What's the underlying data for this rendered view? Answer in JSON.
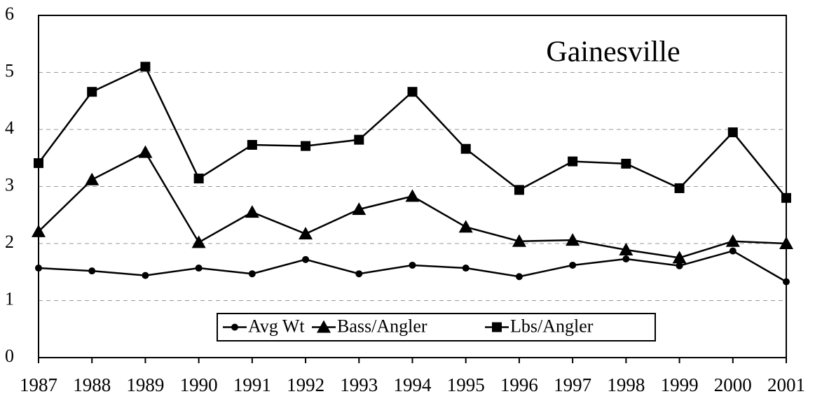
{
  "chart_data": {
    "type": "line",
    "title": "Gainesville",
    "categories": [
      "1987",
      "1988",
      "1989",
      "1990",
      "1991",
      "1992",
      "1993",
      "1994",
      "1995",
      "1996",
      "1997",
      "1998",
      "1999",
      "2000",
      "2001"
    ],
    "series": [
      {
        "name": "Avg Wt",
        "color": "#000000",
        "marker": "circle",
        "values": [
          1.57,
          1.52,
          1.44,
          1.57,
          1.47,
          1.72,
          1.47,
          1.62,
          1.57,
          1.42,
          1.62,
          1.73,
          1.61,
          1.87,
          1.33
        ]
      },
      {
        "name": "Bass/Angler",
        "color": "#000000",
        "marker": "triangle",
        "values": [
          2.21,
          3.12,
          3.6,
          2.02,
          2.55,
          2.17,
          2.6,
          2.83,
          2.29,
          2.04,
          2.06,
          1.89,
          1.75,
          2.04,
          2.0
        ]
      },
      {
        "name": "Lbs/Angler",
        "color": "#000000",
        "marker": "square",
        "values": [
          3.41,
          4.66,
          5.1,
          3.14,
          3.73,
          3.71,
          3.82,
          4.66,
          3.66,
          2.94,
          3.44,
          3.4,
          2.97,
          3.95,
          2.8
        ]
      }
    ],
    "ylim": [
      0,
      6
    ],
    "yticks": [
      0,
      1,
      2,
      3,
      4,
      5,
      6
    ],
    "grid": true,
    "legend": "bottom"
  }
}
